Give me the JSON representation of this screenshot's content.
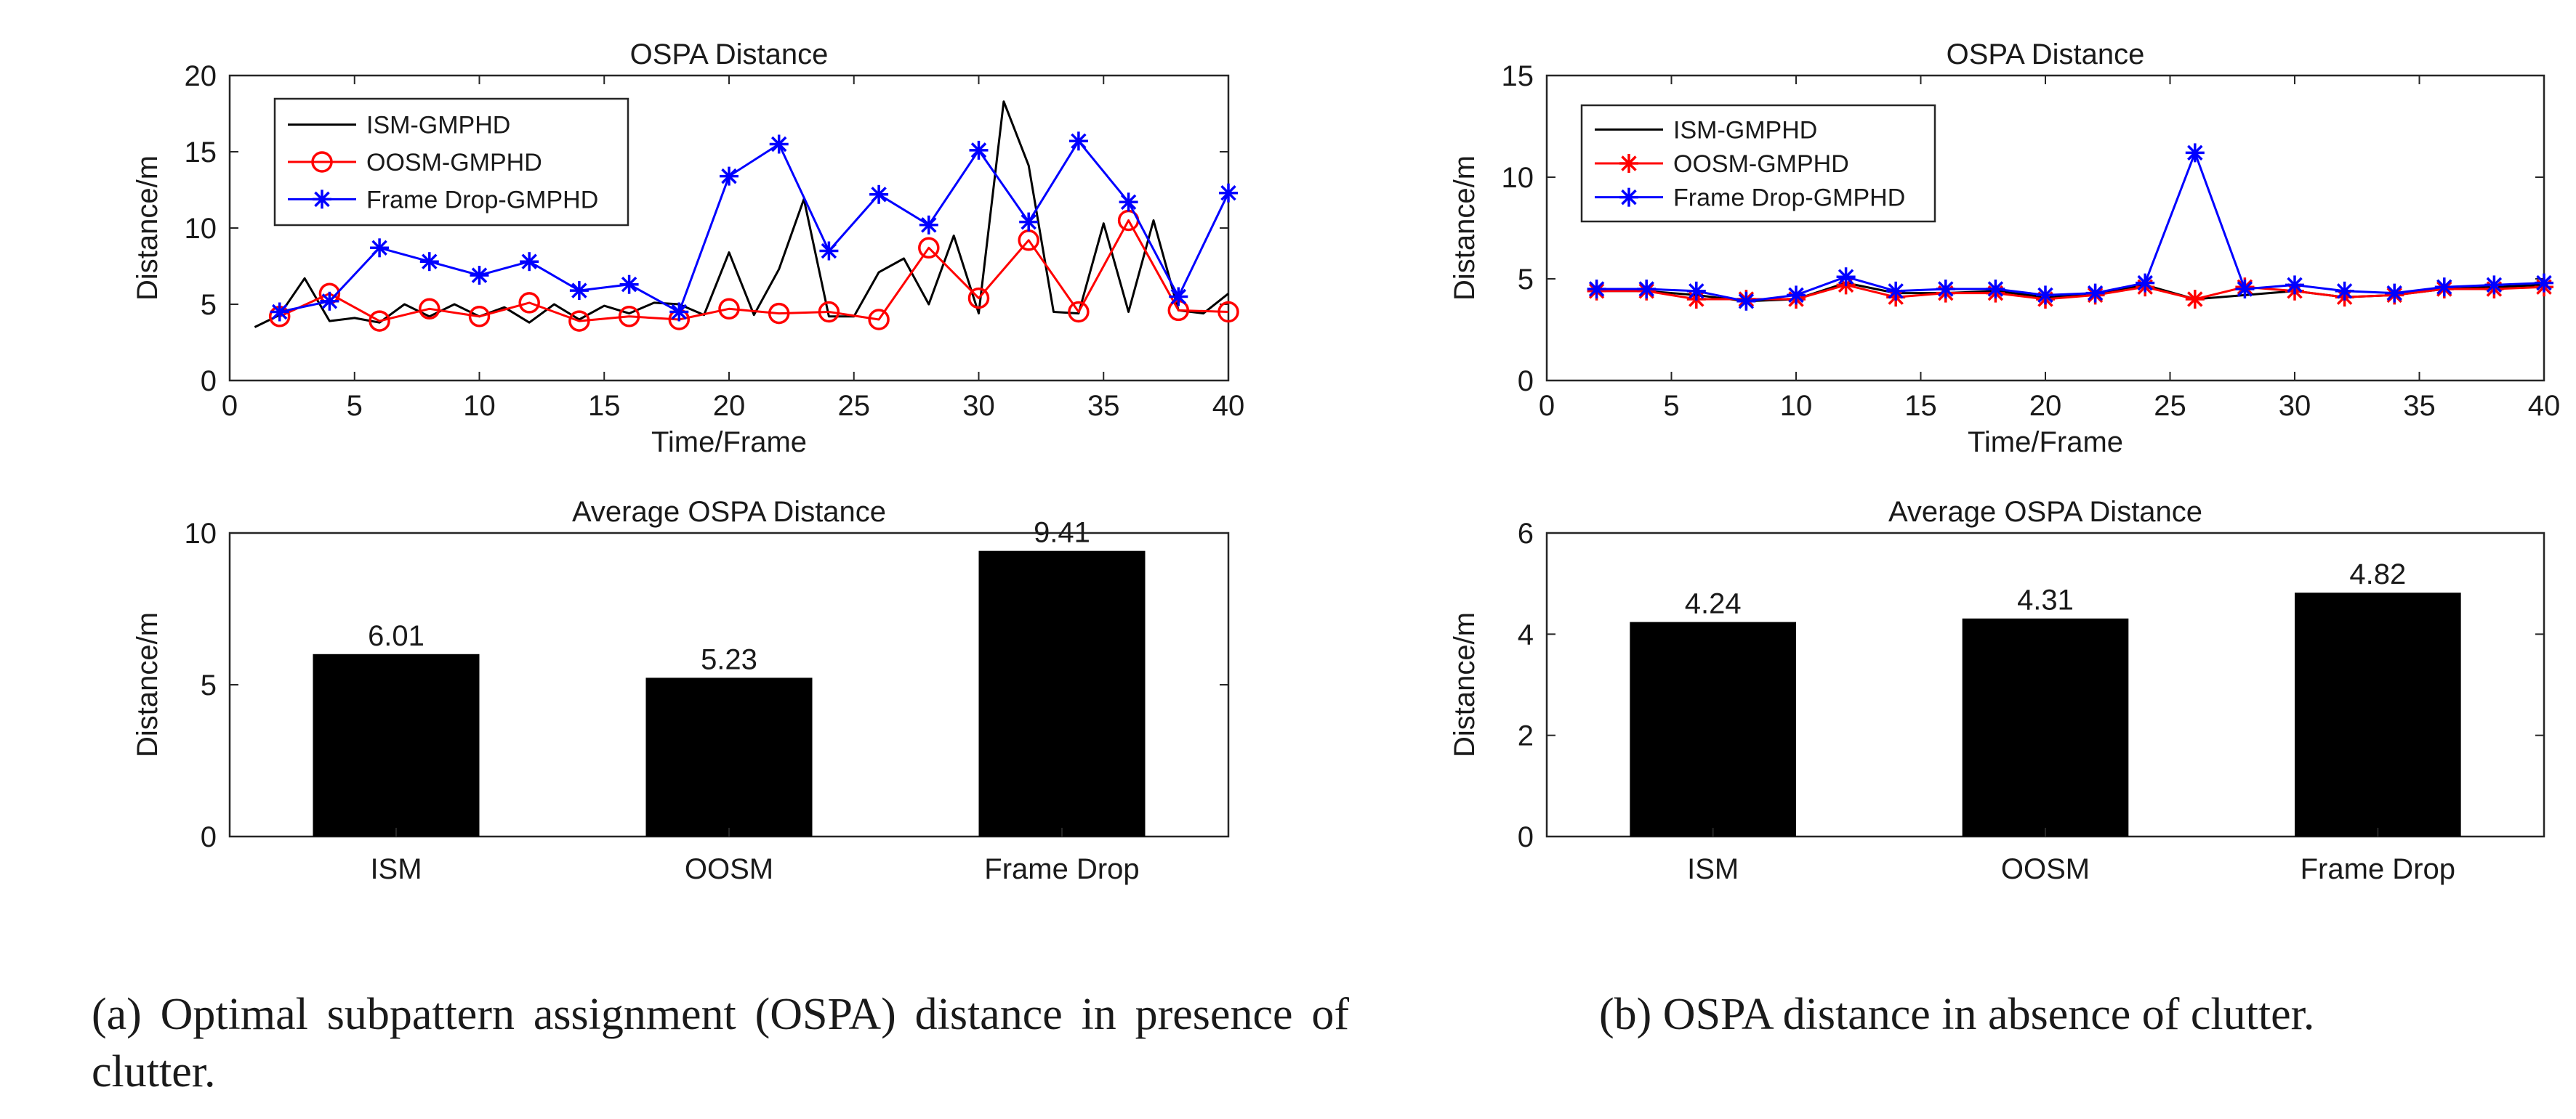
{
  "chart_data": [
    {
      "id": "a_line",
      "type": "line",
      "title": "OSPA Distance",
      "xlabel": "Time/Frame",
      "ylabel": "Distance/m",
      "xlim": [
        0,
        40
      ],
      "ylim": [
        0,
        20
      ],
      "xticks": [
        0,
        5,
        10,
        15,
        20,
        25,
        30,
        35,
        40
      ],
      "yticks": [
        0,
        5,
        10,
        15,
        20
      ],
      "legend_position": "top-left",
      "series": [
        {
          "name": "ISM-GMPHD",
          "color": "#000000",
          "marker": "none",
          "x": [
            1,
            2,
            3,
            4,
            5,
            6,
            7,
            8,
            9,
            10,
            11,
            12,
            13,
            14,
            15,
            16,
            17,
            18,
            19,
            20,
            21,
            22,
            23,
            24,
            25,
            26,
            27,
            28,
            29,
            30,
            31,
            32,
            33,
            34,
            35,
            36,
            37,
            38,
            39,
            40
          ],
          "y": [
            3.5,
            4.3,
            6.7,
            3.9,
            4.1,
            3.8,
            5.0,
            4.2,
            5.0,
            4.2,
            4.8,
            3.8,
            5.0,
            4.0,
            4.9,
            4.4,
            5.1,
            5.0,
            4.3,
            8.4,
            4.3,
            7.3,
            11.9,
            4.2,
            4.2,
            7.1,
            8.0,
            5.0,
            9.5,
            4.4,
            18.3,
            14.1,
            4.5,
            4.4,
            10.3,
            4.5,
            10.5,
            4.6,
            4.4,
            5.7
          ]
        },
        {
          "name": "OOSM-GMPHD",
          "color": "#ff0000",
          "marker": "circle",
          "x": [
            2,
            4,
            6,
            8,
            10,
            12,
            14,
            16,
            18,
            20,
            22,
            24,
            26,
            28,
            30,
            32,
            34,
            36,
            38,
            40
          ],
          "y": [
            4.2,
            5.7,
            3.9,
            4.7,
            4.2,
            5.1,
            3.9,
            4.2,
            4.0,
            4.7,
            4.4,
            4.5,
            4.0,
            8.7,
            5.4,
            9.2,
            4.5,
            10.5,
            4.6,
            4.5
          ]
        },
        {
          "name": "Frame Drop-GMPHD",
          "color": "#0000ff",
          "marker": "asterisk",
          "x": [
            2,
            4,
            6,
            8,
            10,
            12,
            14,
            16,
            18,
            20,
            22,
            24,
            26,
            28,
            30,
            32,
            34,
            36,
            38,
            40
          ],
          "y": [
            4.5,
            5.2,
            8.7,
            7.8,
            6.9,
            7.8,
            5.9,
            6.3,
            4.5,
            13.4,
            15.5,
            8.5,
            12.2,
            10.2,
            15.1,
            10.4,
            15.7,
            11.7,
            5.5,
            12.3
          ]
        }
      ]
    },
    {
      "id": "a_bar",
      "type": "bar",
      "title": "Average OSPA Distance",
      "xlabel": "",
      "ylabel": "Distance/m",
      "ylim": [
        0,
        10
      ],
      "yticks": [
        0,
        5,
        10
      ],
      "categories": [
        "ISM",
        "OOSM",
        "Frame Drop"
      ],
      "values": [
        6.01,
        5.23,
        9.41
      ],
      "value_labels": [
        "6.01",
        "5.23",
        "9.41"
      ],
      "color": "#000000"
    },
    {
      "id": "b_line",
      "type": "line",
      "title": "OSPA Distance",
      "xlabel": "Time/Frame",
      "ylabel": "Distance/m",
      "xlim": [
        0,
        40
      ],
      "ylim": [
        0,
        15
      ],
      "xticks": [
        0,
        5,
        10,
        15,
        20,
        25,
        30,
        35,
        40
      ],
      "yticks": [
        0,
        5,
        10,
        15
      ],
      "legend_position": "top-left",
      "series": [
        {
          "name": "ISM-GMPHD",
          "color": "#000000",
          "marker": "none",
          "x": [
            2,
            4,
            6,
            8,
            10,
            12,
            14,
            16,
            18,
            20,
            22,
            24,
            26,
            28,
            30,
            32,
            34,
            36,
            38,
            40
          ],
          "y": [
            4.4,
            4.4,
            4.2,
            3.9,
            4.0,
            4.8,
            4.3,
            4.3,
            4.4,
            4.1,
            4.2,
            4.7,
            4.0,
            4.2,
            4.4,
            4.1,
            4.2,
            4.5,
            4.6,
            4.7
          ]
        },
        {
          "name": "OOSM-GMPHD",
          "color": "#ff0000",
          "marker": "asterisk",
          "x": [
            2,
            4,
            6,
            8,
            10,
            12,
            14,
            16,
            18,
            20,
            22,
            24,
            26,
            28,
            30,
            32,
            34,
            36,
            38,
            40
          ],
          "y": [
            4.4,
            4.4,
            4.0,
            4.0,
            4.0,
            4.7,
            4.1,
            4.3,
            4.3,
            4.0,
            4.2,
            4.6,
            4.0,
            4.6,
            4.4,
            4.1,
            4.2,
            4.5,
            4.5,
            4.6
          ]
        },
        {
          "name": "Frame Drop-GMPHD",
          "color": "#0000ff",
          "marker": "asterisk",
          "x": [
            2,
            4,
            6,
            8,
            10,
            12,
            14,
            16,
            18,
            20,
            22,
            24,
            26,
            28,
            30,
            32,
            34,
            36,
            38,
            40
          ],
          "y": [
            4.5,
            4.5,
            4.4,
            3.9,
            4.2,
            5.1,
            4.4,
            4.5,
            4.5,
            4.2,
            4.3,
            4.8,
            11.2,
            4.5,
            4.7,
            4.4,
            4.3,
            4.6,
            4.7,
            4.8
          ]
        }
      ]
    },
    {
      "id": "b_bar",
      "type": "bar",
      "title": "Average OSPA Distance",
      "xlabel": "",
      "ylabel": "Distance/m",
      "ylim": [
        0,
        6
      ],
      "yticks": [
        0,
        2,
        4,
        6
      ],
      "categories": [
        "ISM",
        "OOSM",
        "Frame Drop"
      ],
      "values": [
        4.24,
        4.31,
        4.82
      ],
      "value_labels": [
        "4.24",
        "4.31",
        "4.82"
      ],
      "color": "#000000"
    }
  ],
  "captions": {
    "a": "(a) Optimal subpattern assignment (OSPA) distance in presence of clutter.",
    "b": "(b) OSPA distance in absence of clutter."
  }
}
